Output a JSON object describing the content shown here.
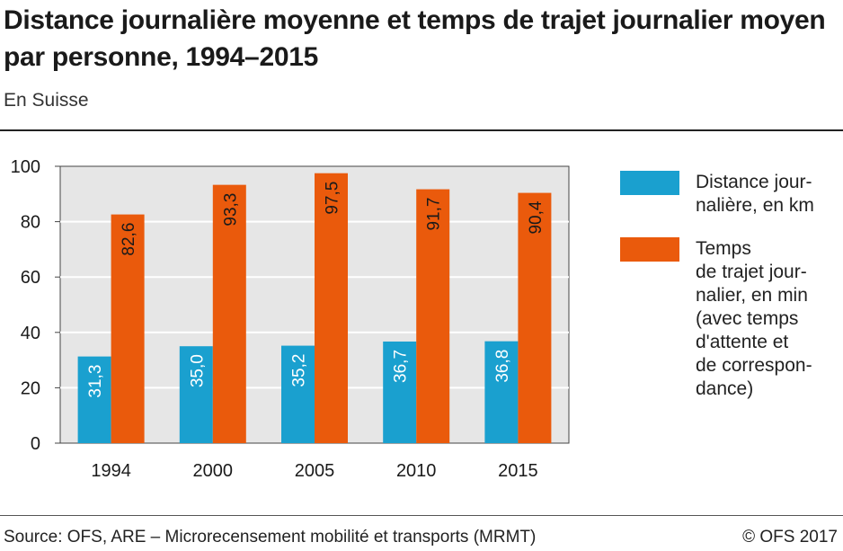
{
  "title": "Distance journalière moyenne et temps de trajet journalier moyen par personne, 1994–2015",
  "subtitle": "En Suisse",
  "source": "Source: OFS, ARE – Microrecensement mobilité et transports (MRMT)",
  "copyright": "© OFS 2017",
  "colors": {
    "distance": "#1aa0cf",
    "temps": "#ea5a0c",
    "plot_bg": "#e6e6e6",
    "grid": "#ffffff"
  },
  "legend": {
    "distance_label": "Distance jour-\nnalière, en km",
    "temps_label": "Temps\nde trajet jour-\nnalier, en min\n(avec temps\nd'attente et\nde correspon-\ndance)"
  },
  "chart_data": {
    "type": "bar",
    "categories": [
      "1994",
      "2000",
      "2005",
      "2010",
      "2015"
    ],
    "series": [
      {
        "name": "Distance journalière, en km",
        "values": [
          31.3,
          35.0,
          35.2,
          36.7,
          36.8
        ],
        "labels": [
          "31,3",
          "35,0",
          "35,2",
          "36,7",
          "36,8"
        ]
      },
      {
        "name": "Temps de trajet journalier, en min (avec temps d'attente et de correspondance)",
        "values": [
          82.6,
          93.3,
          97.5,
          91.7,
          90.4
        ],
        "labels": [
          "82,6",
          "93,3",
          "97,5",
          "91,7",
          "90,4"
        ]
      }
    ],
    "y_ticks": [
      "0",
      "20",
      "40",
      "60",
      "80",
      "100"
    ],
    "ylim": [
      0,
      100
    ],
    "grid": true,
    "legend_position": "right"
  }
}
